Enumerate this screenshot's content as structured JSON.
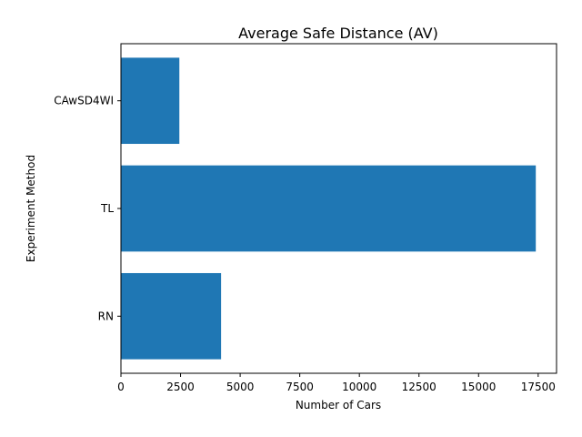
{
  "chart_data": {
    "type": "bar",
    "orientation": "horizontal",
    "title": "Average Safe Distance (AV)",
    "xlabel": "Number of Cars",
    "ylabel": "Experiment Method",
    "categories": [
      "RN",
      "TL",
      "CAwSD4WI"
    ],
    "values": [
      4200,
      17400,
      2450
    ],
    "xlim": [
      0,
      18270
    ],
    "xticks": [
      0,
      2500,
      5000,
      7500,
      10000,
      12500,
      15000,
      17500
    ],
    "xtick_labels": [
      "0",
      "2500",
      "5000",
      "7500",
      "10000",
      "12500",
      "15000",
      "17500"
    ],
    "grid": false,
    "legend": "none",
    "bar_color": "#1f77b4"
  }
}
